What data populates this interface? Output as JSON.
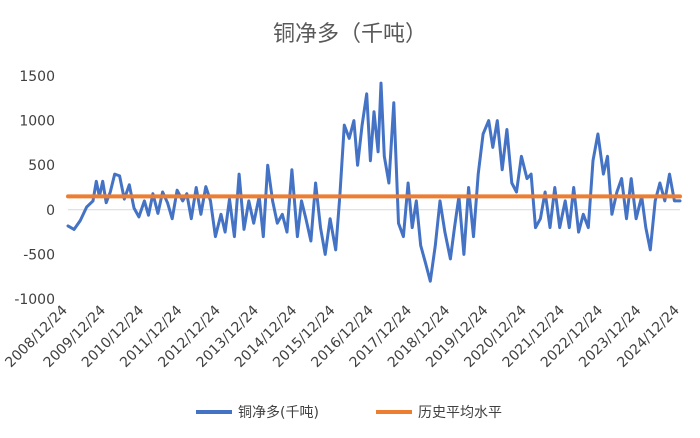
{
  "chart_data": {
    "type": "line",
    "title": "铜净多（千吨）",
    "xlabel": "",
    "ylabel": "",
    "ylim": [
      -1000,
      1500
    ],
    "yticks": [
      -1000,
      -500,
      0,
      500,
      1000,
      1500
    ],
    "x_range": [
      "2008/12/24",
      "2024/12/24"
    ],
    "x_ticks": [
      "2008/12/24",
      "2009/12/24",
      "2010/12/24",
      "2011/12/24",
      "2012/12/24",
      "2013/12/24",
      "2014/12/24",
      "2015/12/24",
      "2016/12/24",
      "2017/12/24",
      "2018/12/24",
      "2019/12/24",
      "2020/12/24",
      "2021/12/24",
      "2022/12/24",
      "2023/12/24",
      "2024/12/24"
    ],
    "grid": false,
    "legend_position": "bottom",
    "series": [
      {
        "name": "铜净多(千吨)",
        "color": "#4472C4",
        "points": [
          [
            "2008/12/24",
            -180
          ],
          [
            "2009/02/20",
            -220
          ],
          [
            "2009/04/20",
            -120
          ],
          [
            "2009/06/20",
            30
          ],
          [
            "2009/08/20",
            100
          ],
          [
            "2009/09/20",
            320
          ],
          [
            "2009/10/20",
            150
          ],
          [
            "2009/11/20",
            320
          ],
          [
            "2009/12/24",
            80
          ],
          [
            "2010/02/01",
            200
          ],
          [
            "2010/03/15",
            400
          ],
          [
            "2010/05/01",
            380
          ],
          [
            "2010/06/15",
            120
          ],
          [
            "2010/08/01",
            280
          ],
          [
            "2010/09/15",
            20
          ],
          [
            "2010/11/01",
            -80
          ],
          [
            "2010/12/24",
            100
          ],
          [
            "2011/02/01",
            -60
          ],
          [
            "2011/03/15",
            180
          ],
          [
            "2011/05/01",
            -40
          ],
          [
            "2011/06/15",
            200
          ],
          [
            "2011/08/01",
            80
          ],
          [
            "2011/09/15",
            -100
          ],
          [
            "2011/11/01",
            220
          ],
          [
            "2011/12/24",
            100
          ],
          [
            "2012/02/01",
            180
          ],
          [
            "2012/03/15",
            -100
          ],
          [
            "2012/05/01",
            250
          ],
          [
            "2012/06/15",
            -50
          ],
          [
            "2012/08/01",
            260
          ],
          [
            "2012/09/15",
            100
          ],
          [
            "2012/11/01",
            -300
          ],
          [
            "2012/12/24",
            -50
          ],
          [
            "2013/02/01",
            -250
          ],
          [
            "2013/03/15",
            120
          ],
          [
            "2013/05/01",
            -300
          ],
          [
            "2013/06/15",
            400
          ],
          [
            "2013/08/01",
            -220
          ],
          [
            "2013/09/15",
            100
          ],
          [
            "2013/11/01",
            -150
          ],
          [
            "2013/12/24",
            150
          ],
          [
            "2014/02/01",
            -300
          ],
          [
            "2014/03/15",
            500
          ],
          [
            "2014/05/01",
            100
          ],
          [
            "2014/06/15",
            -150
          ],
          [
            "2014/08/01",
            -50
          ],
          [
            "2014/09/15",
            -250
          ],
          [
            "2014/11/01",
            450
          ],
          [
            "2014/12/24",
            -300
          ],
          [
            "2015/02/01",
            100
          ],
          [
            "2015/03/15",
            -100
          ],
          [
            "2015/05/01",
            -350
          ],
          [
            "2015/06/15",
            300
          ],
          [
            "2015/08/01",
            -200
          ],
          [
            "2015/09/15",
            -500
          ],
          [
            "2015/11/01",
            -100
          ],
          [
            "2015/12/24",
            -450
          ],
          [
            "2016/02/01",
            150
          ],
          [
            "2016/03/15",
            950
          ],
          [
            "2016/05/01",
            800
          ],
          [
            "2016/06/15",
            1000
          ],
          [
            "2016/07/20",
            500
          ],
          [
            "2016/09/01",
            950
          ],
          [
            "2016/10/15",
            1300
          ],
          [
            "2016/11/20",
            550
          ],
          [
            "2016/12/24",
            1100
          ],
          [
            "2017/02/01",
            650
          ],
          [
            "2017/03/01",
            1420
          ],
          [
            "2017/04/01",
            600
          ],
          [
            "2017/05/15",
            300
          ],
          [
            "2017/07/01",
            1200
          ],
          [
            "2017/08/15",
            -150
          ],
          [
            "2017/10/01",
            -300
          ],
          [
            "2017/11/15",
            300
          ],
          [
            "2017/12/24",
            -200
          ],
          [
            "2018/02/01",
            100
          ],
          [
            "2018/03/15",
            -400
          ],
          [
            "2018/05/01",
            -600
          ],
          [
            "2018/06/15",
            -800
          ],
          [
            "2018/08/01",
            -400
          ],
          [
            "2018/09/15",
            100
          ],
          [
            "2018/11/01",
            -250
          ],
          [
            "2018/12/24",
            -550
          ],
          [
            "2019/02/01",
            -200
          ],
          [
            "2019/03/15",
            150
          ],
          [
            "2019/05/01",
            -500
          ],
          [
            "2019/06/15",
            250
          ],
          [
            "2019/08/01",
            -300
          ],
          [
            "2019/09/15",
            400
          ],
          [
            "2019/11/01",
            850
          ],
          [
            "2019/12/24",
            1000
          ],
          [
            "2020/02/01",
            700
          ],
          [
            "2020/03/15",
            1000
          ],
          [
            "2020/05/01",
            450
          ],
          [
            "2020/06/15",
            900
          ],
          [
            "2020/08/01",
            300
          ],
          [
            "2020/09/15",
            200
          ],
          [
            "2020/11/01",
            600
          ],
          [
            "2020/12/24",
            350
          ],
          [
            "2021/02/01",
            400
          ],
          [
            "2021/03/15",
            -200
          ],
          [
            "2021/05/01",
            -100
          ],
          [
            "2021/06/15",
            200
          ],
          [
            "2021/08/01",
            -200
          ],
          [
            "2021/09/15",
            250
          ],
          [
            "2021/11/01",
            -200
          ],
          [
            "2021/12/24",
            100
          ],
          [
            "2022/02/01",
            -200
          ],
          [
            "2022/03/15",
            250
          ],
          [
            "2022/05/01",
            -250
          ],
          [
            "2022/06/15",
            -50
          ],
          [
            "2022/08/01",
            -200
          ],
          [
            "2022/09/15",
            550
          ],
          [
            "2022/11/01",
            850
          ],
          [
            "2022/12/24",
            400
          ],
          [
            "2023/02/01",
            600
          ],
          [
            "2023/03/15",
            -50
          ],
          [
            "2023/05/01",
            200
          ],
          [
            "2023/06/15",
            350
          ],
          [
            "2023/08/01",
            -100
          ],
          [
            "2023/09/15",
            350
          ],
          [
            "2023/11/01",
            -100
          ],
          [
            "2023/12/24",
            150
          ],
          [
            "2024/02/01",
            -200
          ],
          [
            "2024/03/15",
            -450
          ],
          [
            "2024/05/01",
            100
          ],
          [
            "2024/06/15",
            300
          ],
          [
            "2024/08/01",
            100
          ],
          [
            "2024/09/15",
            400
          ],
          [
            "2024/11/01",
            100
          ],
          [
            "2024/12/24",
            100
          ]
        ]
      },
      {
        "name": "历史平均水平",
        "color": "#ED7D31",
        "points": [
          [
            "2008/12/24",
            150
          ],
          [
            "2024/12/24",
            150
          ]
        ]
      }
    ]
  }
}
